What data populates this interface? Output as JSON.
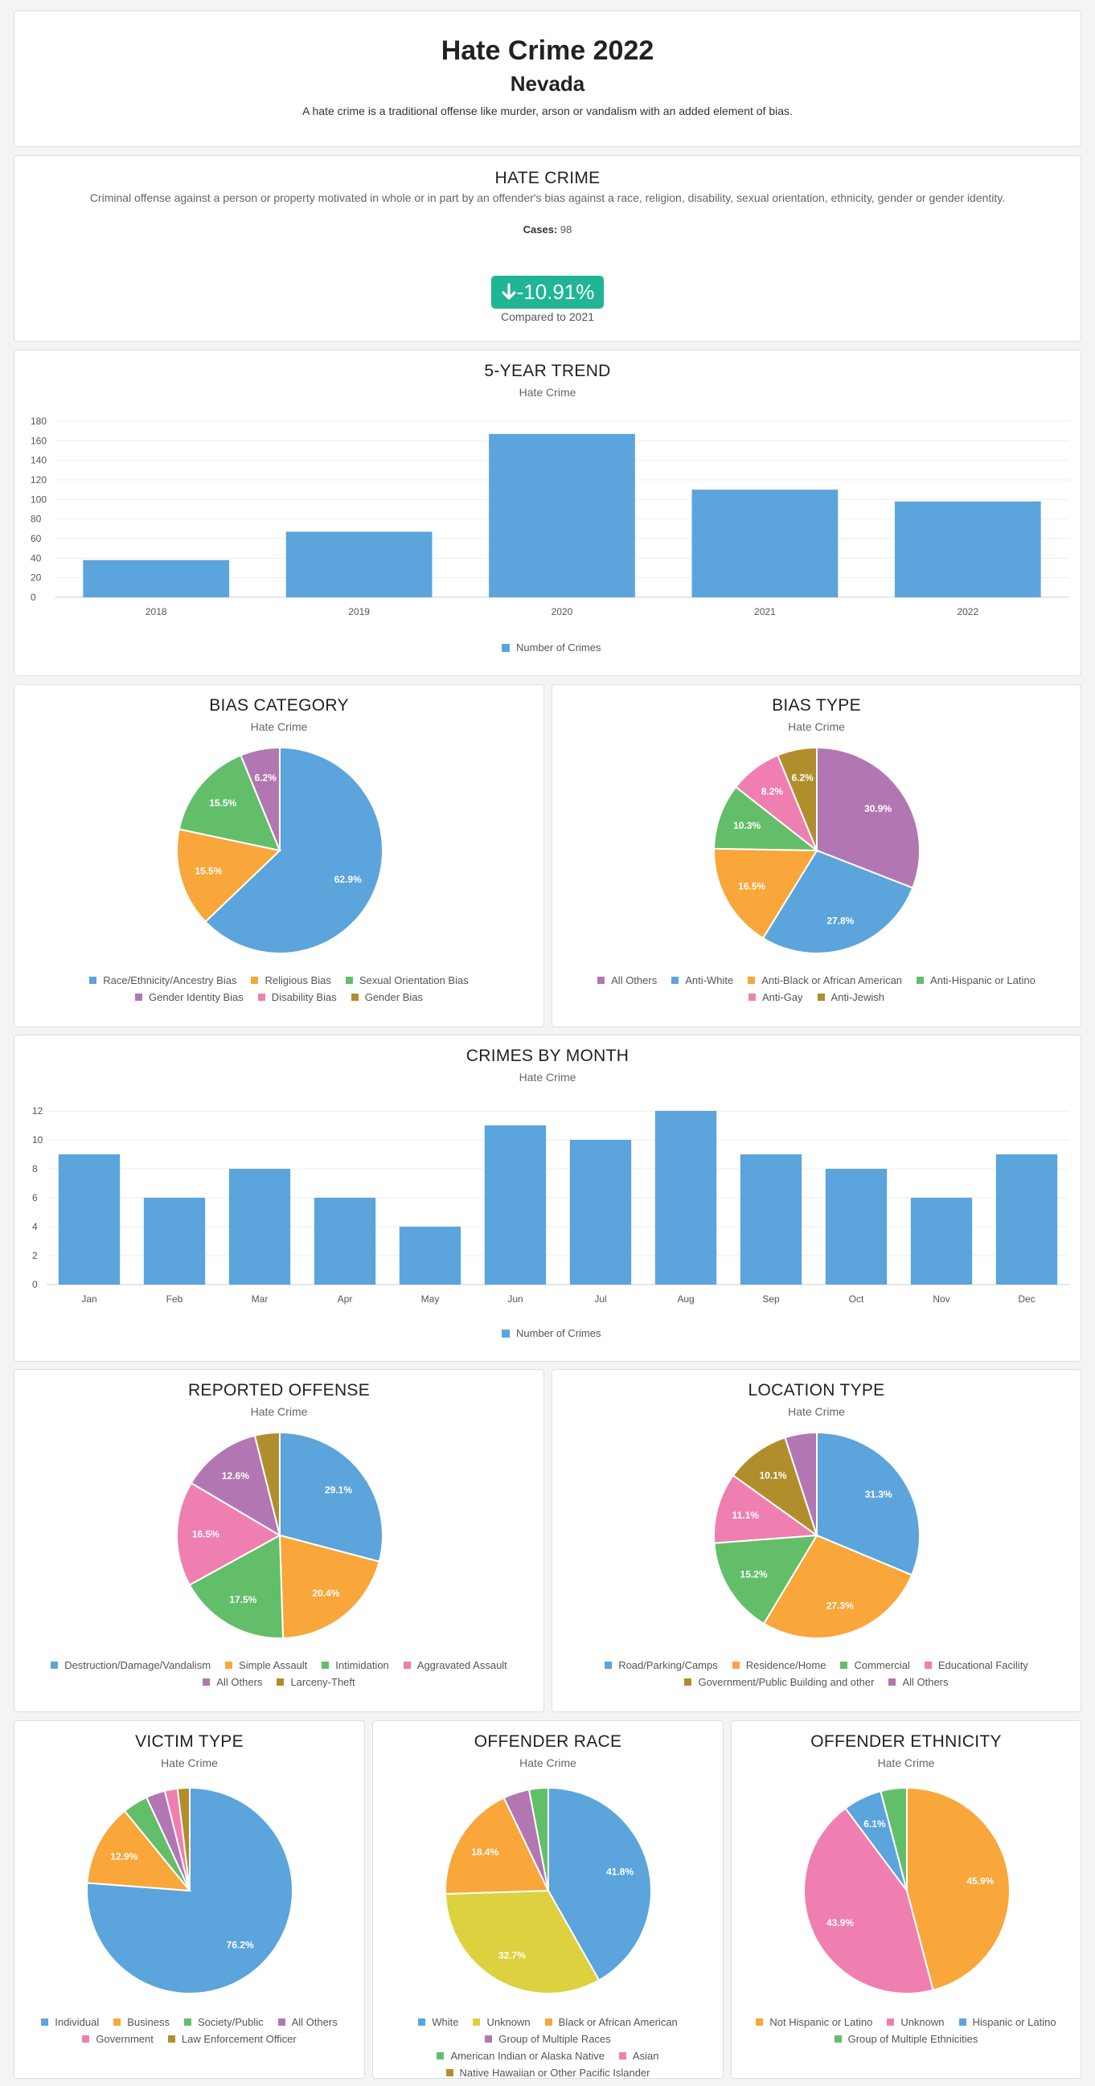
{
  "header": {
    "title": "Hate Crime 2022",
    "state": "Nevada",
    "description": "A hate crime is a traditional offense like murder, arson or vandalism with an added element of bias."
  },
  "summary": {
    "title": "HATE CRIME",
    "description": "Criminal offense against a person or property motivated in whole or in part by an offender's bias against a race, religion, disability, sexual orientation, ethnicity, gender or gender identity.",
    "cases_label": "Cases",
    "cases_value": "98",
    "change": "-10.91%",
    "change_icon": "arrow-down-icon",
    "change_label": "Compared to 2021",
    "change_color": "#1fb595"
  },
  "colors": {
    "blue": "#5ba4dc",
    "orange": "#f9a63a",
    "green": "#63be6a",
    "purple": "#b277b3",
    "pink": "#ef7fb1",
    "olive": "#b18e2c",
    "yellow": "#ddd13f"
  },
  "chart_data": [
    {
      "id": "trend",
      "type": "bar",
      "title": "5-YEAR TREND",
      "subtitle": "Hate Crime",
      "categories": [
        "2018",
        "2019",
        "2020",
        "2021",
        "2022"
      ],
      "series": [
        {
          "name": "Number of Crimes",
          "values": [
            38,
            67,
            167,
            110,
            98
          ],
          "color": "#5ba4dc"
        }
      ],
      "yticks": [
        0,
        20,
        40,
        60,
        80,
        100,
        120,
        140,
        160,
        180
      ],
      "ylim": [
        0,
        180
      ],
      "legend": "bottom"
    },
    {
      "id": "bias_category",
      "type": "pie",
      "title": "BIAS CATEGORY",
      "subtitle": "Hate Crime",
      "slices": [
        {
          "name": "Race/Ethnicity/Ancestry Bias",
          "value": 62.9,
          "color": "#5ba4dc",
          "label": "62.9%"
        },
        {
          "name": "Religious Bias",
          "value": 15.5,
          "color": "#f9a63a",
          "label": "15.5%"
        },
        {
          "name": "Sexual Orientation Bias",
          "value": 15.5,
          "color": "#63be6a",
          "label": "15.5%"
        },
        {
          "name": "Gender Identity Bias",
          "value": 6.2,
          "color": "#b277b3",
          "label": "6.2%"
        },
        {
          "name": "Disability Bias",
          "value": 0,
          "color": "#ef7fb1",
          "label": ""
        },
        {
          "name": "Gender Bias",
          "value": 0,
          "color": "#b18e2c",
          "label": ""
        }
      ],
      "legend": "bottom"
    },
    {
      "id": "bias_type",
      "type": "pie",
      "title": "BIAS TYPE",
      "subtitle": "Hate Crime",
      "slices": [
        {
          "name": "All Others",
          "value": 30.9,
          "color": "#b277b3",
          "label": "30.9%"
        },
        {
          "name": "Anti-White",
          "value": 27.8,
          "color": "#5ba4dc",
          "label": "27.8%"
        },
        {
          "name": "Anti-Black or African American",
          "value": 16.5,
          "color": "#f9a63a",
          "label": "16.5%"
        },
        {
          "name": "Anti-Hispanic or Latino",
          "value": 10.3,
          "color": "#63be6a",
          "label": "10.3%"
        },
        {
          "name": "Anti-Gay",
          "value": 8.2,
          "color": "#ef7fb1",
          "label": "8.2%"
        },
        {
          "name": "Anti-Jewish",
          "value": 6.2,
          "color": "#b18e2c",
          "label": "6.2%"
        }
      ],
      "legend": "bottom"
    },
    {
      "id": "by_month",
      "type": "bar",
      "title": "CRIMES BY MONTH",
      "subtitle": "Hate Crime",
      "categories": [
        "Jan",
        "Feb",
        "Mar",
        "Apr",
        "May",
        "Jun",
        "Jul",
        "Aug",
        "Sep",
        "Oct",
        "Nov",
        "Dec"
      ],
      "series": [
        {
          "name": "Number of Crimes",
          "values": [
            9,
            6,
            8,
            6,
            4,
            11,
            10,
            12,
            9,
            8,
            6,
            9
          ],
          "color": "#5ba4dc"
        }
      ],
      "yticks": [
        0,
        2,
        4,
        6,
        8,
        10,
        12
      ],
      "ylim": [
        0,
        12
      ],
      "legend": "bottom"
    },
    {
      "id": "reported_offense",
      "type": "pie",
      "title": "REPORTED OFFENSE",
      "subtitle": "Hate Crime",
      "slices": [
        {
          "name": "Destruction/Damage/Vandalism",
          "value": 29.1,
          "color": "#5ba4dc",
          "label": "29.1%"
        },
        {
          "name": "Simple Assault",
          "value": 20.4,
          "color": "#f9a63a",
          "label": "20.4%"
        },
        {
          "name": "Intimidation",
          "value": 17.5,
          "color": "#63be6a",
          "label": "17.5%"
        },
        {
          "name": "Aggravated Assault",
          "value": 16.5,
          "color": "#ef7fb1",
          "label": "16.5%"
        },
        {
          "name": "All Others",
          "value": 12.6,
          "color": "#b277b3",
          "label": "12.6%"
        },
        {
          "name": "Larceny-Theft",
          "value": 3.9,
          "color": "#b18e2c",
          "label": ""
        }
      ],
      "legend": "bottom"
    },
    {
      "id": "location_type",
      "type": "pie",
      "title": "LOCATION TYPE",
      "subtitle": "Hate Crime",
      "slices": [
        {
          "name": "Road/Parking/Camps",
          "value": 31.3,
          "color": "#5ba4dc",
          "label": "31.3%"
        },
        {
          "name": "Residence/Home",
          "value": 27.3,
          "color": "#f9a63a",
          "label": "27.3%"
        },
        {
          "name": "Commercial",
          "value": 15.2,
          "color": "#63be6a",
          "label": "15.2%"
        },
        {
          "name": "Educational Facility",
          "value": 11.1,
          "color": "#ef7fb1",
          "label": "11.1%"
        },
        {
          "name": "Government/Public Building and other",
          "value": 10.1,
          "color": "#b18e2c",
          "label": "10.1%"
        },
        {
          "name": "All Others",
          "value": 5.0,
          "color": "#b277b3",
          "label": ""
        }
      ],
      "legend": "bottom"
    },
    {
      "id": "victim_type",
      "type": "pie",
      "title": "VICTIM TYPE",
      "subtitle": "Hate Crime",
      "slices": [
        {
          "name": "Individual",
          "value": 76.2,
          "color": "#5ba4dc",
          "label": "76.2%"
        },
        {
          "name": "Business",
          "value": 12.9,
          "color": "#f9a63a",
          "label": "12.9%"
        },
        {
          "name": "Society/Public",
          "value": 4.0,
          "color": "#63be6a",
          "label": ""
        },
        {
          "name": "All Others",
          "value": 3.0,
          "color": "#b277b3",
          "label": ""
        },
        {
          "name": "Government",
          "value": 2.0,
          "color": "#ef7fb1",
          "label": ""
        },
        {
          "name": "Law Enforcement Officer",
          "value": 1.9,
          "color": "#b18e2c",
          "label": ""
        }
      ],
      "legend": "bottom"
    },
    {
      "id": "offender_race",
      "type": "pie",
      "title": "OFFENDER RACE",
      "subtitle": "Hate Crime",
      "slices": [
        {
          "name": "White",
          "value": 41.8,
          "color": "#5ba4dc",
          "label": "41.8%"
        },
        {
          "name": "Unknown",
          "value": 32.7,
          "color": "#ddd13f",
          "label": "32.7%"
        },
        {
          "name": "Black or African American",
          "value": 18.4,
          "color": "#f9a63a",
          "label": "18.4%"
        },
        {
          "name": "Group of Multiple Races",
          "value": 4.1,
          "color": "#b277b3",
          "label": ""
        },
        {
          "name": "American Indian or Alaska Native",
          "value": 3.0,
          "color": "#63be6a",
          "label": ""
        },
        {
          "name": "Asian",
          "value": 0,
          "color": "#ef7fb1",
          "label": ""
        },
        {
          "name": "Native Hawaiian or Other Pacific Islander",
          "value": 0,
          "color": "#b18e2c",
          "label": ""
        }
      ],
      "legend": "bottom"
    },
    {
      "id": "offender_ethnicity",
      "type": "pie",
      "title": "OFFENDER ETHNICITY",
      "subtitle": "Hate Crime",
      "slices": [
        {
          "name": "Not Hispanic or Latino",
          "value": 45.9,
          "color": "#f9a63a",
          "label": "45.9%"
        },
        {
          "name": "Unknown",
          "value": 43.9,
          "color": "#ef7fb1",
          "label": "43.9%"
        },
        {
          "name": "Hispanic or Latino",
          "value": 6.1,
          "color": "#5ba4dc",
          "label": "6.1%"
        },
        {
          "name": "Group of Multiple Ethnicities",
          "value": 4.1,
          "color": "#63be6a",
          "label": ""
        }
      ],
      "legend": "bottom"
    }
  ]
}
